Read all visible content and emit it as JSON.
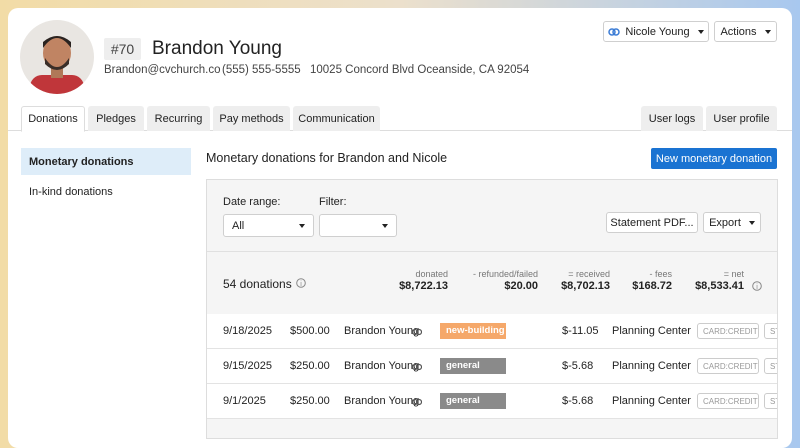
{
  "header": {
    "badge": "#70",
    "name": "Brandon Young",
    "email": "Brandon@cvchurch.co",
    "phone": "(555) 555-5555",
    "address": "10025 Concord Blvd Oceanside, CA 92054"
  },
  "top_buttons": {
    "household": "Nicole Young",
    "actions": "Actions"
  },
  "tabs": {
    "left": [
      "Donations",
      "Pledges",
      "Recurring",
      "Pay methods",
      "Communication"
    ],
    "right": [
      "User logs",
      "User profile"
    ]
  },
  "sidebar": [
    "Monetary donations",
    "In-kind donations"
  ],
  "main": {
    "heading": "Monetary donations for Brandon and Nicole",
    "new_button": "New monetary donation"
  },
  "filters": {
    "date_label": "Date range:",
    "date_value": "All",
    "filter_label": "Filter:",
    "statement_button": "Statement PDF...",
    "export_button": "Export"
  },
  "summary": {
    "count": "54 donations",
    "stats": [
      {
        "label": "donated",
        "value": "$8,722.13"
      },
      {
        "label": "- refunded/failed",
        "value": "$20.00"
      },
      {
        "label": "= received",
        "value": "$8,702.13"
      },
      {
        "label": "- fees",
        "value": "$168.72"
      },
      {
        "label": "= net",
        "value": "$8,533.41"
      }
    ]
  },
  "table": {
    "rows": [
      {
        "date": "9/18/2025",
        "amount": "$500.00",
        "name": "Brandon Young",
        "fund": "new-building",
        "fund_color": "#f5a86a",
        "fee": "$-11.05",
        "source": "Planning Center",
        "method": "CARD:CREDIT",
        "extra": "ST"
      },
      {
        "date": "9/15/2025",
        "amount": "$250.00",
        "name": "Brandon Young",
        "fund": "general",
        "fund_color": "#8a8a8a",
        "fee": "$-5.68",
        "source": "Planning Center",
        "method": "CARD:CREDIT",
        "extra": "ST"
      },
      {
        "date": "9/1/2025",
        "amount": "$250.00",
        "name": "Brandon Young",
        "fund": "general",
        "fund_color": "#8a8a8a",
        "fee": "$-5.68",
        "source": "Planning Center",
        "method": "CARD:CREDIT",
        "extra": "ST"
      }
    ]
  }
}
